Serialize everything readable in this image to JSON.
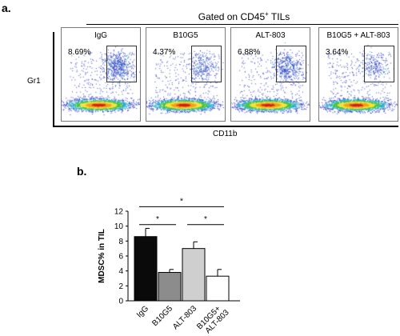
{
  "panel_a": {
    "letter": "a.",
    "gate_header_prefix": "Gated on CD45",
    "gate_header_sup": "+",
    "gate_header_suffix": " TILs",
    "y_axis_label": "Gr1",
    "x_axis_label": "CD11b",
    "plots": [
      {
        "name": "IgG",
        "percent": "8.69%",
        "gate_fraction": 0.0869
      },
      {
        "name": "B10G5",
        "percent": "4.37%",
        "gate_fraction": 0.0437
      },
      {
        "name": "ALT-803",
        "percent": "6.88%",
        "gate_fraction": 0.0688
      },
      {
        "name": "B10G5 + ALT-803",
        "percent": "3.64%",
        "gate_fraction": 0.0364
      }
    ]
  },
  "panel_b": {
    "letter": "b.",
    "significance_marker": "*"
  },
  "chart_data": [
    {
      "type": "scatter",
      "title": "Gated on CD45+ TILs",
      "xlabel": "CD11b",
      "ylabel": "Gr1",
      "panels": [
        "IgG",
        "B10G5",
        "ALT-803",
        "B10G5 + ALT-803"
      ],
      "gate_percent": [
        8.69,
        4.37,
        6.88,
        3.64
      ]
    },
    {
      "type": "bar",
      "categories": [
        "IgG",
        "B10G5",
        "ALT-803",
        "B10G5+ ALT-803"
      ],
      "values": [
        8.6,
        3.8,
        7.0,
        3.3
      ],
      "errors": [
        1.1,
        0.4,
        0.9,
        0.9
      ],
      "bar_colors": [
        "#0a0a0a",
        "#8c8c8c",
        "#cfcfcf",
        "#ffffff"
      ],
      "ylabel": "MDSC% in TIL",
      "ylim": [
        0,
        12
      ],
      "yticks": [
        0,
        2,
        4,
        6,
        8,
        10,
        12
      ],
      "significance": [
        {
          "from": "IgG",
          "to": "B10G5",
          "label": "*"
        },
        {
          "from": "ALT-803",
          "to": "B10G5+ ALT-803",
          "label": "*"
        },
        {
          "from": "IgG",
          "to": "B10G5+ ALT-803",
          "label": "*"
        }
      ],
      "grid": false,
      "legend": "none"
    }
  ]
}
